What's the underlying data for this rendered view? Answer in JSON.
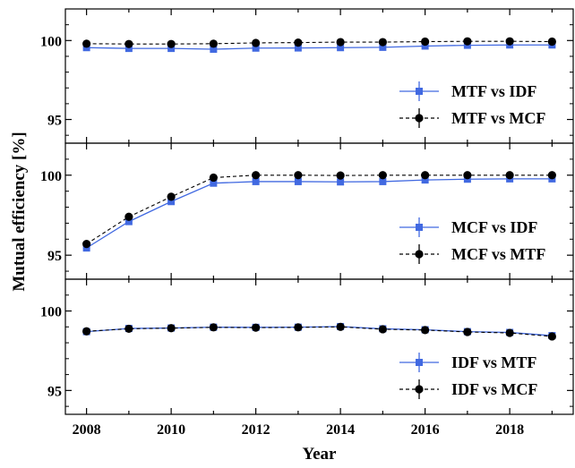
{
  "chart_data": {
    "type": "line",
    "xlabel": "Year",
    "ylabel": "Mutual efficiency [%]",
    "xlim": [
      2007.5,
      2019.5
    ],
    "x_ticks": [
      2008,
      2010,
      2012,
      2014,
      2016,
      2018
    ],
    "x": [
      2008,
      2009,
      2010,
      2011,
      2012,
      2013,
      2014,
      2015,
      2016,
      2017,
      2018,
      2019
    ],
    "grid": false,
    "colors": {
      "blue": "#4169e1",
      "black": "#000000"
    },
    "panels": [
      {
        "ylim": [
          93.5,
          102
        ],
        "y_ticks": [
          95,
          100
        ],
        "legend_position": "lower-right",
        "series": [
          {
            "name": "MTF vs IDF",
            "style": "blue-square-solid",
            "values": [
              99.55,
              99.5,
              99.5,
              99.45,
              99.52,
              99.53,
              99.55,
              99.57,
              99.65,
              99.7,
              99.72,
              99.72
            ]
          },
          {
            "name": "MTF vs MCF",
            "style": "black-circle-dashed",
            "values": [
              99.8,
              99.78,
              99.78,
              99.8,
              99.85,
              99.87,
              99.9,
              99.9,
              99.93,
              99.95,
              99.95,
              99.93
            ]
          }
        ]
      },
      {
        "ylim": [
          93.5,
          102
        ],
        "y_ticks": [
          95,
          100
        ],
        "legend_position": "lower-right",
        "series": [
          {
            "name": "MCF vs IDF",
            "style": "blue-square-solid",
            "values": [
              95.45,
              97.1,
              98.35,
              99.5,
              99.6,
              99.6,
              99.58,
              99.6,
              99.7,
              99.75,
              99.77,
              99.77
            ]
          },
          {
            "name": "MCF vs MTF",
            "style": "black-circle-dashed",
            "values": [
              95.7,
              97.4,
              98.65,
              99.85,
              100.0,
              100.0,
              99.98,
              100.0,
              100.0,
              100.0,
              100.0,
              100.0
            ]
          }
        ]
      },
      {
        "ylim": [
          93.5,
          102
        ],
        "y_ticks": [
          95,
          100
        ],
        "legend_position": "lower-right",
        "series": [
          {
            "name": "IDF vs MTF",
            "style": "blue-square-solid",
            "values": [
              98.7,
              98.9,
              98.93,
              98.98,
              98.97,
              98.98,
              99.02,
              98.88,
              98.82,
              98.7,
              98.65,
              98.45
            ]
          },
          {
            "name": "IDF vs MCF",
            "style": "black-circle-dashed",
            "values": [
              98.72,
              98.88,
              98.92,
              98.97,
              98.95,
              98.97,
              99.0,
              98.85,
              98.8,
              98.68,
              98.62,
              98.4
            ]
          }
        ]
      }
    ]
  }
}
